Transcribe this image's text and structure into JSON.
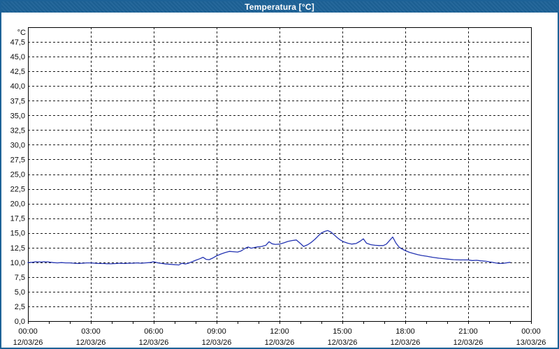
{
  "window": {
    "title": "Temperatura [°C]"
  },
  "colors": {
    "titlebar": "#1d6297",
    "frame": "#1d6297",
    "plot_background": "#ffffff",
    "plot_border": "#000000",
    "grid": "#1a1a1a",
    "tick_text": "#0a0a0a",
    "series_line": "#2535b2"
  },
  "chart_data": {
    "type": "line",
    "title": "Temperatura [°C]",
    "grid": "dashed",
    "legend": "none",
    "y_axis": {
      "unit_label": "°C",
      "min": 0,
      "max": 50,
      "step": 2.5,
      "tick_labels": [
        "0,0",
        "2,5",
        "5,0",
        "7,5",
        "10,0",
        "12,5",
        "15,0",
        "17,5",
        "20,0",
        "22,5",
        "25,0",
        "27,5",
        "30,0",
        "32,5",
        "35,0",
        "37,5",
        "40,0",
        "42,5",
        "45,0",
        "47,5"
      ]
    },
    "x_axis": {
      "hours_span": 24,
      "minor_tick_every_hours": 1,
      "label_every_hours": 3,
      "ticks": [
        {
          "hour": 0,
          "time": "00:00",
          "date": "12/03/26"
        },
        {
          "hour": 3,
          "time": "03:00",
          "date": "12/03/26"
        },
        {
          "hour": 6,
          "time": "06:00",
          "date": "12/03/26"
        },
        {
          "hour": 9,
          "time": "09:00",
          "date": "12/03/26"
        },
        {
          "hour": 12,
          "time": "12:00",
          "date": "12/03/26"
        },
        {
          "hour": 15,
          "time": "15:00",
          "date": "12/03/26"
        },
        {
          "hour": 18,
          "time": "18:00",
          "date": "12/03/26"
        },
        {
          "hour": 21,
          "time": "21:00",
          "date": "12/03/26"
        },
        {
          "hour": 24,
          "time": "00:00",
          "date": "13/03/26"
        }
      ]
    },
    "series": [
      {
        "name": "Temperatura",
        "color": "#2535b2",
        "points_hours_celsius": [
          [
            0,
            9.95
          ],
          [
            0.2,
            10.0
          ],
          [
            0.4,
            10.1
          ],
          [
            0.6,
            10.05
          ],
          [
            0.8,
            10.1
          ],
          [
            1,
            10.05
          ],
          [
            1.2,
            9.95
          ],
          [
            1.4,
            9.9
          ],
          [
            1.6,
            9.95
          ],
          [
            1.8,
            9.9
          ],
          [
            2,
            9.9
          ],
          [
            2.2,
            9.85
          ],
          [
            2.4,
            9.8
          ],
          [
            2.6,
            9.85
          ],
          [
            2.8,
            9.9
          ],
          [
            3,
            9.9
          ],
          [
            3.2,
            9.85
          ],
          [
            3.4,
            9.8
          ],
          [
            3.6,
            9.8
          ],
          [
            3.8,
            9.75
          ],
          [
            4,
            9.75
          ],
          [
            4.2,
            9.8
          ],
          [
            4.4,
            9.85
          ],
          [
            4.6,
            9.8
          ],
          [
            4.8,
            9.85
          ],
          [
            5,
            9.85
          ],
          [
            5.2,
            9.9
          ],
          [
            5.4,
            9.85
          ],
          [
            5.6,
            9.9
          ],
          [
            5.8,
            9.95
          ],
          [
            6,
            10.1
          ],
          [
            6.2,
            9.9
          ],
          [
            6.4,
            9.8
          ],
          [
            6.6,
            9.7
          ],
          [
            6.8,
            9.65
          ],
          [
            7,
            9.6
          ],
          [
            7.2,
            9.55
          ],
          [
            7.35,
            9.85
          ],
          [
            7.5,
            9.7
          ],
          [
            7.65,
            9.85
          ],
          [
            7.8,
            10.05
          ],
          [
            8,
            10.35
          ],
          [
            8.2,
            10.6
          ],
          [
            8.35,
            10.85
          ],
          [
            8.5,
            10.5
          ],
          [
            8.65,
            10.45
          ],
          [
            8.8,
            10.7
          ],
          [
            9,
            11.1
          ],
          [
            9.2,
            11.4
          ],
          [
            9.4,
            11.65
          ],
          [
            9.6,
            11.85
          ],
          [
            9.8,
            11.8
          ],
          [
            10,
            11.75
          ],
          [
            10.15,
            11.9
          ],
          [
            10.35,
            12.35
          ],
          [
            10.5,
            12.6
          ],
          [
            10.65,
            12.4
          ],
          [
            10.85,
            12.55
          ],
          [
            11,
            12.65
          ],
          [
            11.15,
            12.7
          ],
          [
            11.35,
            12.9
          ],
          [
            11.5,
            13.5
          ],
          [
            11.65,
            13.15
          ],
          [
            11.8,
            13.05
          ],
          [
            12,
            13.1
          ],
          [
            12.2,
            13.3
          ],
          [
            12.4,
            13.55
          ],
          [
            12.6,
            13.7
          ],
          [
            12.8,
            13.8
          ],
          [
            13,
            13.2
          ],
          [
            13.15,
            12.7
          ],
          [
            13.35,
            13.0
          ],
          [
            13.5,
            13.35
          ],
          [
            13.7,
            13.95
          ],
          [
            13.85,
            14.5
          ],
          [
            14,
            15.0
          ],
          [
            14.15,
            15.25
          ],
          [
            14.3,
            15.4
          ],
          [
            14.45,
            15.15
          ],
          [
            14.6,
            14.7
          ],
          [
            14.75,
            14.2
          ],
          [
            14.9,
            13.8
          ],
          [
            15.05,
            13.5
          ],
          [
            15.25,
            13.25
          ],
          [
            15.45,
            13.1
          ],
          [
            15.65,
            13.2
          ],
          [
            15.85,
            13.6
          ],
          [
            16,
            14.0
          ],
          [
            16.15,
            13.25
          ],
          [
            16.35,
            13.0
          ],
          [
            16.55,
            12.9
          ],
          [
            16.75,
            12.85
          ],
          [
            16.95,
            12.85
          ],
          [
            17.1,
            13.1
          ],
          [
            17.25,
            13.7
          ],
          [
            17.4,
            14.3
          ],
          [
            17.55,
            13.3
          ],
          [
            17.7,
            12.6
          ],
          [
            17.85,
            12.25
          ],
          [
            18,
            12.0
          ],
          [
            18.2,
            11.7
          ],
          [
            18.4,
            11.5
          ],
          [
            18.6,
            11.3
          ],
          [
            18.8,
            11.15
          ],
          [
            19,
            11.05
          ],
          [
            19.3,
            10.85
          ],
          [
            19.6,
            10.7
          ],
          [
            20,
            10.55
          ],
          [
            20.3,
            10.45
          ],
          [
            20.6,
            10.4
          ],
          [
            21,
            10.4
          ],
          [
            21.2,
            10.3
          ],
          [
            21.4,
            10.35
          ],
          [
            21.6,
            10.25
          ],
          [
            21.8,
            10.2
          ],
          [
            22,
            10.1
          ],
          [
            22.3,
            9.9
          ],
          [
            22.5,
            9.8
          ],
          [
            22.7,
            9.85
          ],
          [
            23,
            10.0
          ]
        ]
      }
    ]
  }
}
